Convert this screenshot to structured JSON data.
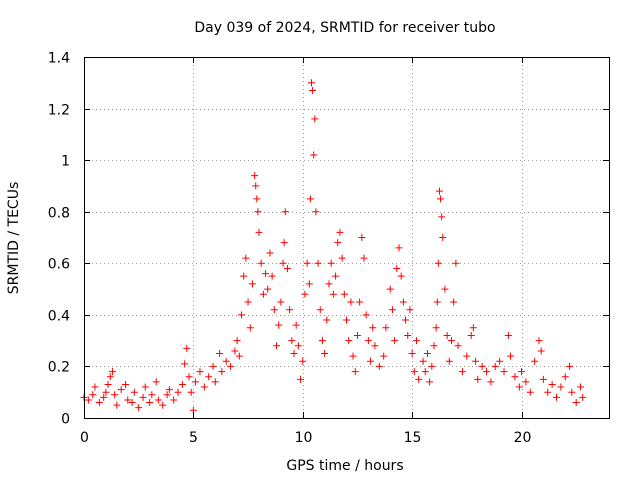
{
  "chart_data": {
    "type": "scatter",
    "title": "Day 039 of 2024, SRMTID for receiver tubo",
    "xlabel": "GPS time / hours",
    "ylabel": "SRMTID / TECUs",
    "xlim": [
      0,
      24
    ],
    "ylim": [
      0,
      1.4
    ],
    "grid": true,
    "marker": "plus",
    "color": "#ff0000",
    "xticks": [
      0,
      5,
      10,
      15,
      20
    ],
    "xtick_labels": [
      "0",
      "5",
      "10",
      "15",
      "20"
    ],
    "yticks": [
      0,
      0.2,
      0.4,
      0.6,
      0.8,
      1.0,
      1.2,
      1.4
    ],
    "ytick_labels": [
      "0",
      "0.2",
      "0.4",
      "0.6",
      "0.8",
      "1",
      "1.2",
      "1.4"
    ],
    "series": [
      {
        "name": "SRMTID",
        "points": [
          [
            0.0,
            0.08
          ],
          [
            0.2,
            0.07
          ],
          [
            0.4,
            0.09
          ],
          [
            0.5,
            0.12
          ],
          [
            0.7,
            0.06
          ],
          [
            0.9,
            0.08
          ],
          [
            1.0,
            0.1
          ],
          [
            1.1,
            0.13
          ],
          [
            1.2,
            0.16
          ],
          [
            1.3,
            0.18
          ],
          [
            1.4,
            0.09
          ],
          [
            1.5,
            0.05
          ],
          [
            1.7,
            0.11
          ],
          [
            1.9,
            0.13
          ],
          [
            2.0,
            0.07
          ],
          [
            2.2,
            0.06
          ],
          [
            2.3,
            0.1
          ],
          [
            2.5,
            0.04
          ],
          [
            2.7,
            0.08
          ],
          [
            2.8,
            0.12
          ],
          [
            3.0,
            0.06
          ],
          [
            3.1,
            0.09
          ],
          [
            3.3,
            0.14
          ],
          [
            3.4,
            0.07
          ],
          [
            3.6,
            0.05
          ],
          [
            3.8,
            0.09
          ],
          [
            3.9,
            0.11
          ],
          [
            4.1,
            0.07
          ],
          [
            4.3,
            0.1
          ],
          [
            4.5,
            0.13
          ],
          [
            4.6,
            0.21
          ],
          [
            4.7,
            0.27
          ],
          [
            4.8,
            0.16
          ],
          [
            4.9,
            0.1
          ],
          [
            5.0,
            0.03
          ],
          [
            5.1,
            0.14
          ],
          [
            5.3,
            0.18
          ],
          [
            5.5,
            0.12
          ],
          [
            5.7,
            0.16
          ],
          [
            5.9,
            0.2
          ],
          [
            6.0,
            0.14
          ],
          [
            6.2,
            0.25
          ],
          [
            6.3,
            0.18
          ],
          [
            6.5,
            0.22
          ],
          [
            6.7,
            0.2
          ],
          [
            6.9,
            0.26
          ],
          [
            7.0,
            0.3
          ],
          [
            7.1,
            0.24
          ],
          [
            7.2,
            0.4
          ],
          [
            7.3,
            0.55
          ],
          [
            7.4,
            0.62
          ],
          [
            7.5,
            0.45
          ],
          [
            7.6,
            0.35
          ],
          [
            7.7,
            0.52
          ],
          [
            7.8,
            0.94
          ],
          [
            7.85,
            0.9
          ],
          [
            7.9,
            0.85
          ],
          [
            7.95,
            0.8
          ],
          [
            8.0,
            0.72
          ],
          [
            8.1,
            0.6
          ],
          [
            8.2,
            0.48
          ],
          [
            8.3,
            0.56
          ],
          [
            8.4,
            0.5
          ],
          [
            8.5,
            0.64
          ],
          [
            8.6,
            0.55
          ],
          [
            8.7,
            0.42
          ],
          [
            8.8,
            0.28
          ],
          [
            8.9,
            0.36
          ],
          [
            9.0,
            0.45
          ],
          [
            9.1,
            0.6
          ],
          [
            9.15,
            0.68
          ],
          [
            9.2,
            0.8
          ],
          [
            9.3,
            0.58
          ],
          [
            9.4,
            0.42
          ],
          [
            9.5,
            0.3
          ],
          [
            9.6,
            0.25
          ],
          [
            9.7,
            0.36
          ],
          [
            9.8,
            0.28
          ],
          [
            9.9,
            0.15
          ],
          [
            10.0,
            0.22
          ],
          [
            10.1,
            0.48
          ],
          [
            10.2,
            0.6
          ],
          [
            10.3,
            0.52
          ],
          [
            10.35,
            0.85
          ],
          [
            10.4,
            1.3
          ],
          [
            10.45,
            1.27
          ],
          [
            10.5,
            1.02
          ],
          [
            10.55,
            1.16
          ],
          [
            10.6,
            0.8
          ],
          [
            10.7,
            0.6
          ],
          [
            10.8,
            0.42
          ],
          [
            10.9,
            0.3
          ],
          [
            11.0,
            0.25
          ],
          [
            11.1,
            0.38
          ],
          [
            11.2,
            0.52
          ],
          [
            11.3,
            0.6
          ],
          [
            11.4,
            0.48
          ],
          [
            11.5,
            0.55
          ],
          [
            11.6,
            0.68
          ],
          [
            11.7,
            0.72
          ],
          [
            11.8,
            0.62
          ],
          [
            11.9,
            0.48
          ],
          [
            12.0,
            0.38
          ],
          [
            12.1,
            0.3
          ],
          [
            12.2,
            0.45
          ],
          [
            12.3,
            0.24
          ],
          [
            12.4,
            0.18
          ],
          [
            12.5,
            0.32
          ],
          [
            12.6,
            0.45
          ],
          [
            12.7,
            0.7
          ],
          [
            12.8,
            0.62
          ],
          [
            12.9,
            0.4
          ],
          [
            13.0,
            0.3
          ],
          [
            13.1,
            0.22
          ],
          [
            13.2,
            0.35
          ],
          [
            13.3,
            0.28
          ],
          [
            13.5,
            0.2
          ],
          [
            13.7,
            0.24
          ],
          [
            13.8,
            0.35
          ],
          [
            14.0,
            0.5
          ],
          [
            14.1,
            0.42
          ],
          [
            14.2,
            0.3
          ],
          [
            14.3,
            0.58
          ],
          [
            14.4,
            0.66
          ],
          [
            14.5,
            0.55
          ],
          [
            14.6,
            0.45
          ],
          [
            14.7,
            0.38
          ],
          [
            14.8,
            0.32
          ],
          [
            14.9,
            0.42
          ],
          [
            15.0,
            0.25
          ],
          [
            15.1,
            0.18
          ],
          [
            15.2,
            0.3
          ],
          [
            15.3,
            0.15
          ],
          [
            15.5,
            0.22
          ],
          [
            15.6,
            0.18
          ],
          [
            15.7,
            0.25
          ],
          [
            15.8,
            0.14
          ],
          [
            15.9,
            0.2
          ],
          [
            16.0,
            0.28
          ],
          [
            16.1,
            0.35
          ],
          [
            16.15,
            0.45
          ],
          [
            16.2,
            0.6
          ],
          [
            16.25,
            0.88
          ],
          [
            16.3,
            0.85
          ],
          [
            16.35,
            0.78
          ],
          [
            16.4,
            0.7
          ],
          [
            16.5,
            0.5
          ],
          [
            16.6,
            0.32
          ],
          [
            16.7,
            0.22
          ],
          [
            16.8,
            0.3
          ],
          [
            16.9,
            0.45
          ],
          [
            17.0,
            0.6
          ],
          [
            17.1,
            0.28
          ],
          [
            17.3,
            0.18
          ],
          [
            17.5,
            0.24
          ],
          [
            17.7,
            0.32
          ],
          [
            17.8,
            0.35
          ],
          [
            17.9,
            0.22
          ],
          [
            18.0,
            0.15
          ],
          [
            18.2,
            0.2
          ],
          [
            18.4,
            0.18
          ],
          [
            18.6,
            0.14
          ],
          [
            18.8,
            0.2
          ],
          [
            19.0,
            0.22
          ],
          [
            19.2,
            0.18
          ],
          [
            19.4,
            0.32
          ],
          [
            19.5,
            0.24
          ],
          [
            19.7,
            0.16
          ],
          [
            19.9,
            0.12
          ],
          [
            20.0,
            0.18
          ],
          [
            20.2,
            0.14
          ],
          [
            20.4,
            0.1
          ],
          [
            20.6,
            0.22
          ],
          [
            20.8,
            0.3
          ],
          [
            20.9,
            0.26
          ],
          [
            21.0,
            0.15
          ],
          [
            21.2,
            0.1
          ],
          [
            21.4,
            0.13
          ],
          [
            21.6,
            0.08
          ],
          [
            21.8,
            0.12
          ],
          [
            22.0,
            0.16
          ],
          [
            22.2,
            0.2
          ],
          [
            22.3,
            0.1
          ],
          [
            22.5,
            0.06
          ],
          [
            22.7,
            0.12
          ],
          [
            22.8,
            0.08
          ]
        ]
      }
    ]
  }
}
